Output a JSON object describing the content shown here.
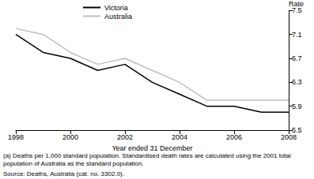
{
  "chart_data": {
    "type": "line",
    "x": [
      1998,
      1999,
      2000,
      2001,
      2002,
      2003,
      2004,
      2005,
      2006,
      2007,
      2008
    ],
    "series": [
      {
        "name": "Victoria",
        "color": "#000000",
        "values": [
          7.1,
          6.8,
          6.7,
          6.5,
          6.6,
          6.3,
          6.1,
          5.9,
          5.9,
          5.8,
          5.8
        ]
      },
      {
        "name": "Australia",
        "color": "#bfbfbf",
        "values": [
          7.2,
          7.1,
          6.8,
          6.6,
          6.7,
          6.5,
          6.3,
          6.0,
          6.0,
          6.0,
          6.0
        ]
      }
    ],
    "xlim": [
      1998,
      2008
    ],
    "xticks": [
      1998,
      2000,
      2002,
      2004,
      2006,
      2008
    ],
    "ylim": [
      5.5,
      7.5
    ],
    "yticks": [
      5.5,
      5.9,
      6.3,
      6.7,
      7.1,
      7.5
    ],
    "x_label": "Year ended 31 December",
    "y_label": "Rate",
    "annotations": [
      "(a) Deaths per 1,000 standard population. Standardised death rates are calculated using the 2001 total population of Australia as the standard population.",
      "Source: Deaths, Australia (cat. no. 3302.0)."
    ],
    "legend": "top-left",
    "grid": false
  }
}
